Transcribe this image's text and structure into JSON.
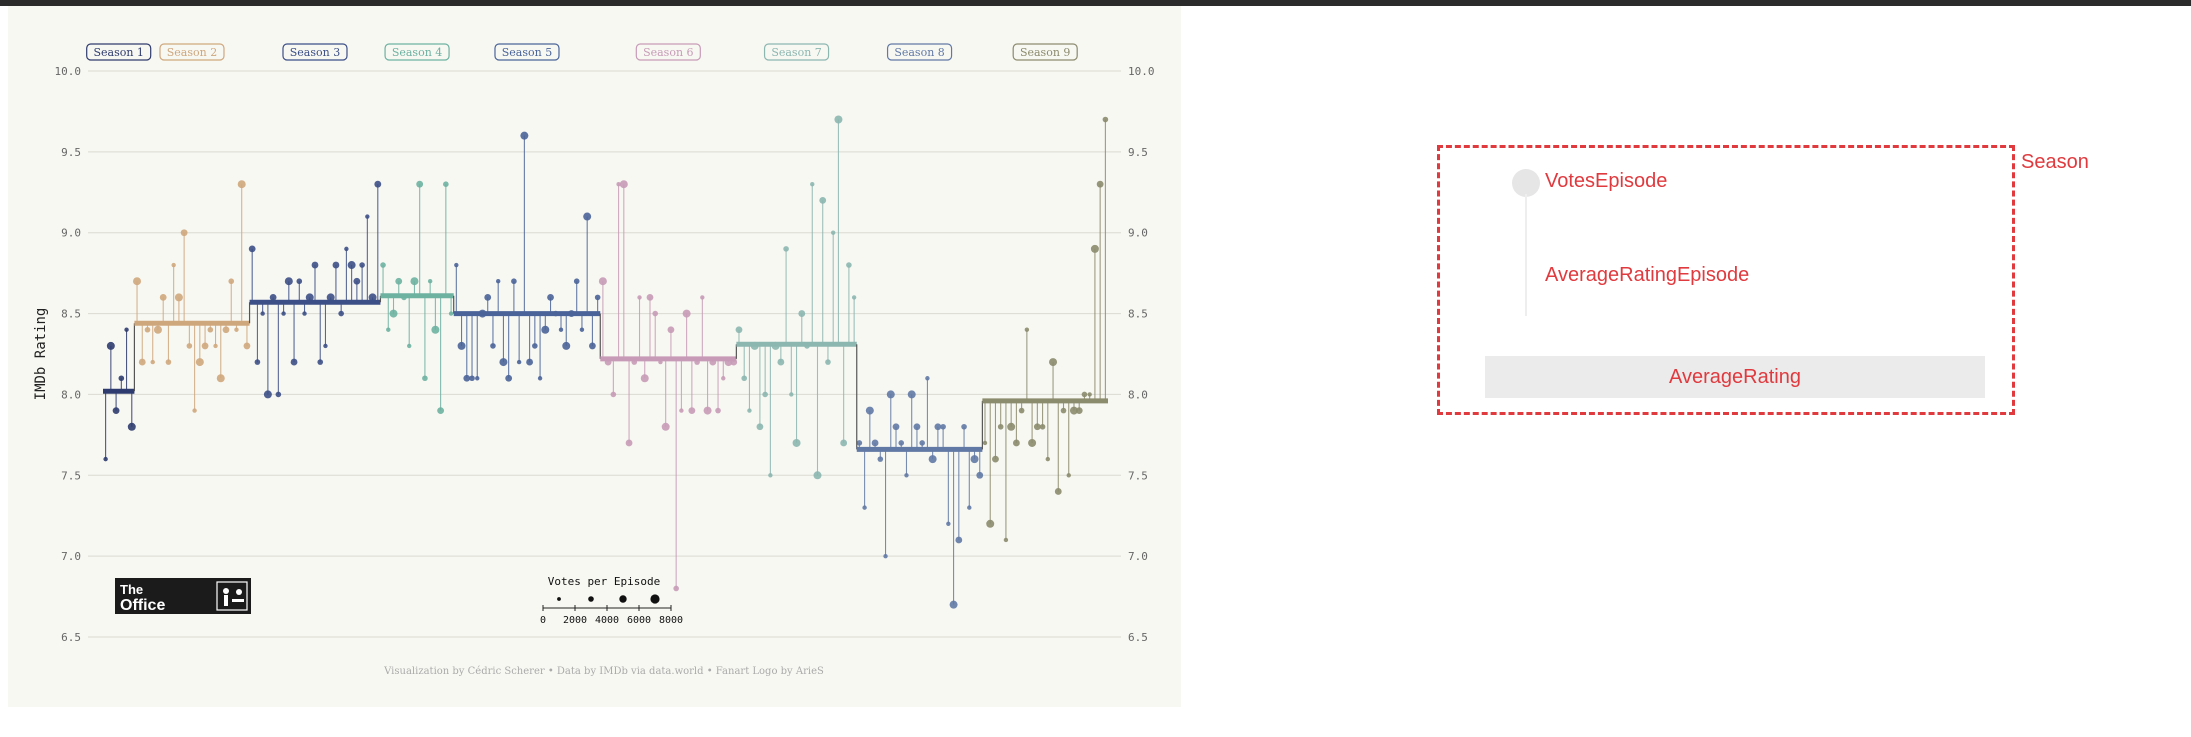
{
  "chart_data": {
    "type": "lollipop-step",
    "ylabel": "IMDb Rating",
    "ylim": [
      6.5,
      10.0
    ],
    "yticks": [
      "10.0",
      "9.5",
      "9.0",
      "8.5",
      "8.0",
      "7.5",
      "7.0",
      "6.5"
    ],
    "grid": true,
    "size_legend": {
      "title": "Votes per Episode",
      "ticks": [
        "0",
        "2000",
        "4000",
        "6000",
        "8000"
      ]
    },
    "caption": "Visualization by Cédric Scherer  •  Data by IMDb via data.world  •  Fanart Logo by ArieS",
    "logo": {
      "line1": "The",
      "line2": "Office"
    },
    "seasons": [
      {
        "name": "Season 1",
        "color": "#2e3b6e",
        "avg": 8.02,
        "episodes": [
          7.6,
          8.3,
          7.9,
          8.1,
          8.4,
          7.8
        ]
      },
      {
        "name": "Season 2",
        "color": "#cfa77d",
        "avg": 8.44,
        "episodes": [
          8.7,
          8.2,
          8.4,
          8.2,
          8.4,
          8.6,
          8.2,
          8.8,
          8.6,
          9.0,
          8.3,
          7.9,
          8.2,
          8.3,
          8.4,
          8.3,
          8.1,
          8.4,
          8.7,
          8.4,
          9.3,
          8.3
        ]
      },
      {
        "name": "Season 3",
        "color": "#3c4f86",
        "avg": 8.57,
        "episodes": [
          8.9,
          8.2,
          8.5,
          8.0,
          8.6,
          8.0,
          8.5,
          8.7,
          8.2,
          8.7,
          8.5,
          8.6,
          8.8,
          8.2,
          8.3,
          8.6,
          8.8,
          8.5,
          8.9,
          8.8,
          8.7,
          8.8,
          9.1,
          8.6,
          9.3
        ]
      },
      {
        "name": "Season 4",
        "color": "#6db1a1",
        "avg": 8.61,
        "episodes": [
          8.8,
          8.4,
          8.5,
          8.7,
          8.6,
          8.3,
          8.7,
          9.3,
          8.1,
          8.7,
          8.4,
          7.9,
          9.3,
          8.5
        ]
      },
      {
        "name": "Season 5",
        "color": "#4a6499",
        "avg": 8.5,
        "episodes": [
          8.8,
          8.3,
          8.1,
          8.1,
          8.1,
          8.5,
          8.6,
          8.3,
          8.7,
          8.2,
          8.1,
          8.7,
          8.2,
          9.6,
          8.2,
          8.3,
          8.1,
          8.4,
          8.6,
          8.5,
          8.4,
          8.3,
          8.5,
          8.7,
          8.4,
          9.1,
          8.3,
          8.6
        ]
      },
      {
        "name": "Season 6",
        "color": "#c79bb7",
        "avg": 8.22,
        "episodes": [
          8.7,
          8.2,
          8.0,
          9.3,
          9.3,
          7.7,
          8.2,
          8.6,
          8.1,
          8.6,
          8.5,
          8.2,
          7.8,
          8.4,
          6.8,
          7.9,
          8.5,
          7.9,
          8.2,
          8.6,
          7.9,
          8.2,
          7.9,
          8.1,
          8.2,
          8.2
        ]
      },
      {
        "name": "Season 7",
        "color": "#8cb6b0",
        "avg": 8.31,
        "episodes": [
          8.4,
          8.1,
          7.9,
          8.3,
          7.8,
          8.0,
          7.5,
          8.3,
          8.2,
          8.9,
          8.0,
          7.7,
          8.5,
          8.3,
          9.3,
          7.5,
          9.2,
          8.2,
          9.0,
          9.7,
          7.7,
          8.8,
          8.6
        ]
      },
      {
        "name": "Season 8",
        "color": "#6179a5",
        "avg": 7.66,
        "episodes": [
          7.7,
          7.3,
          7.9,
          7.7,
          7.6,
          7.0,
          8.0,
          7.8,
          7.7,
          7.5,
          8.0,
          7.8,
          7.7,
          8.1,
          7.6,
          7.8,
          7.8,
          7.2,
          6.7,
          7.1,
          7.8,
          7.3,
          7.6,
          7.5
        ]
      },
      {
        "name": "Season 9",
        "color": "#8b8b6e",
        "avg": 7.96,
        "episodes": [
          7.7,
          7.2,
          7.6,
          7.8,
          7.1,
          7.8,
          7.7,
          7.9,
          8.4,
          7.7,
          7.8,
          7.8,
          7.6,
          8.2,
          7.4,
          7.9,
          7.5,
          7.9,
          7.9,
          8.0,
          8.0,
          8.9,
          9.3,
          9.7
        ]
      }
    ]
  },
  "legend": {
    "season": "Season",
    "votes_episode": "VotesEpisode",
    "average_rating_episode": "AverageRatingEpisode",
    "average_rating": "AverageRating"
  }
}
